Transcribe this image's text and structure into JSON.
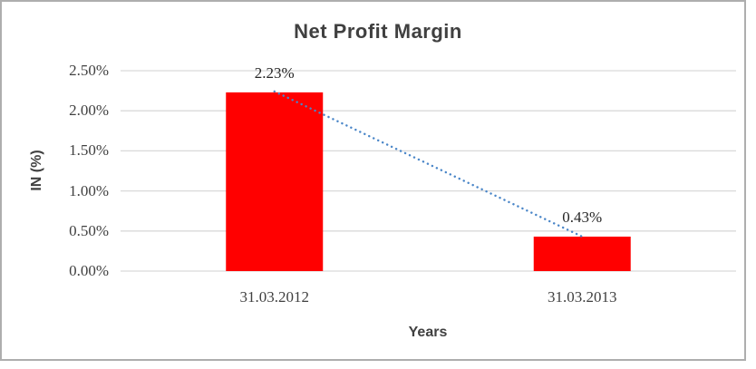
{
  "chart_data": {
    "type": "bar",
    "title": "Net Profit Margin",
    "xlabel": "Years",
    "ylabel": "IN (%)",
    "categories": [
      "31.03.2012",
      "31.03.2013"
    ],
    "series": [
      {
        "name": "Net Profit Margin",
        "values": [
          2.23,
          0.43
        ]
      }
    ],
    "values": [
      2.23,
      0.43
    ],
    "data_labels": [
      "2.23%",
      "0.43%"
    ],
    "ylim": [
      0,
      2.5
    ],
    "yticks": [
      {
        "value": 0.0,
        "label": "0.00%"
      },
      {
        "value": 0.5,
        "label": "0.50%"
      },
      {
        "value": 1.0,
        "label": "1.00%"
      },
      {
        "value": 1.5,
        "label": "1.50%"
      },
      {
        "value": 2.0,
        "label": "2.00%"
      },
      {
        "value": 2.5,
        "label": "2.50%"
      }
    ],
    "grid": true,
    "legend": "none",
    "colors": {
      "bar": "#ff0000",
      "trendline": "#4a86c8",
      "gridline": "#d9d9d9",
      "text": "#404040",
      "frame_border": "#aeaeae"
    },
    "trendline": {
      "style": "dotted",
      "shape": "linear"
    }
  }
}
